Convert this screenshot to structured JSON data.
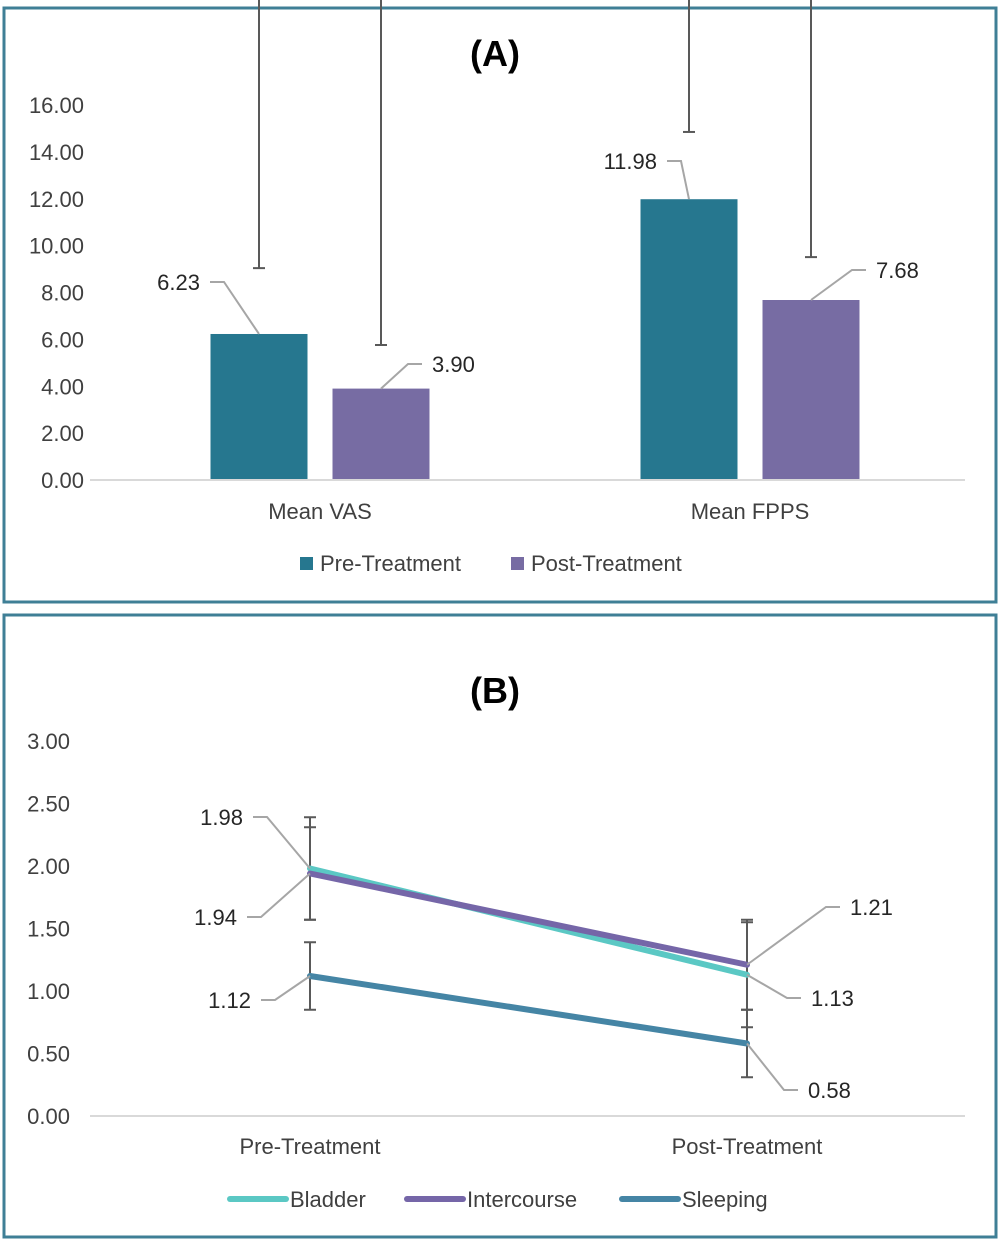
{
  "chart_data": [
    {
      "type": "bar",
      "title": "(A)",
      "categories": [
        "Mean VAS",
        "Mean FPPS"
      ],
      "series": [
        {
          "name": "Pre-Treatment",
          "values": [
            6.23,
            11.98
          ],
          "error": [
            2.81,
            2.87
          ],
          "color": "#26778f"
        },
        {
          "name": "Post-Treatment",
          "values": [
            3.9,
            7.68
          ],
          "error": [
            1.86,
            1.83
          ],
          "color": "#776ca3"
        }
      ],
      "data_labels": [
        "6.23",
        "11.98",
        "3.90",
        "7.68"
      ],
      "ylim": [
        0,
        16
      ],
      "yticks": [
        "0.00",
        "2.00",
        "4.00",
        "6.00",
        "8.00",
        "10.00",
        "12.00",
        "14.00",
        "16.00"
      ],
      "grid": false,
      "legend": "bottom"
    },
    {
      "type": "line",
      "title": "(B)",
      "categories": [
        "Pre-Treatment",
        "Post-Treatment"
      ],
      "series": [
        {
          "name": "Bladder",
          "values": [
            1.98,
            1.13
          ],
          "error": [
            0.41,
            0.42
          ],
          "color": "#5bc8c4"
        },
        {
          "name": "Intercourse",
          "values": [
            1.94,
            1.21
          ],
          "error": [
            0.37,
            0.36
          ],
          "color": "#7566a8"
        },
        {
          "name": "Sleeping",
          "values": [
            1.12,
            0.58
          ],
          "error": [
            0.27,
            0.27
          ],
          "color": "#4585a5"
        }
      ],
      "data_labels": [
        "1.98",
        "1.13",
        "1.94",
        "1.21",
        "1.12",
        "0.58"
      ],
      "ylim": [
        0,
        3
      ],
      "yticks": [
        "0.00",
        "0.50",
        "1.00",
        "1.50",
        "2.00",
        "2.50",
        "3.00"
      ],
      "grid": false,
      "legend": "bottom"
    }
  ],
  "colors": {
    "panel_border": "#3f7f96"
  }
}
